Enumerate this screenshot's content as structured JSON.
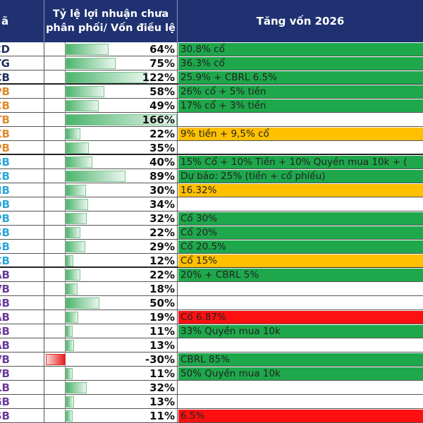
{
  "header": {
    "ticker": "ã",
    "ratio": "Tỷ lệ lợi nhuận chưa phân phối/ Vốn điều lệ",
    "capital": "Tăng vốn 2026"
  },
  "colors": {
    "green": "#1ea84b",
    "yellow": "#ffc000",
    "red": "#ff1010",
    "navy": "#1f2f5c",
    "orange": "#e08a2c",
    "cyan": "#2aa7d8",
    "purple": "#6a3a9a"
  },
  "rows": [
    {
      "ticker": "CD",
      "tc": "navy",
      "value": 64,
      "label": "64%",
      "capital": "30.8% cổ",
      "fill": "green"
    },
    {
      "ticker": "TG",
      "tc": "navy",
      "value": 75,
      "label": "75%",
      "capital": "36.3% cổ",
      "fill": "green"
    },
    {
      "ticker": "CB",
      "tc": "navy",
      "value": 122,
      "label": "122%",
      "capital": "25.9% + CBRL 6.5%",
      "fill": "green"
    },
    {
      "ticker": "PB",
      "tc": "orange",
      "value": 58,
      "label": "58%",
      "capital": "26% cổ + 5% tiền",
      "fill": "green"
    },
    {
      "ticker": "CB",
      "tc": "orange",
      "value": 49,
      "label": "49%",
      "capital": "17% cổ + 3% tiền",
      "fill": "green"
    },
    {
      "ticker": "TB",
      "tc": "orange",
      "value": 166,
      "label": "166%",
      "capital": "",
      "fill": ""
    },
    {
      "ticker": "KB",
      "tc": "orange",
      "value": 22,
      "label": "22%",
      "capital": "9% tiền  + 9,5% cổ",
      "fill": "yellow"
    },
    {
      "ticker": "PB",
      "tc": "orange",
      "value": 35,
      "label": "35%",
      "capital": "",
      "fill": ""
    },
    {
      "ticker": "BB",
      "tc": "cyan",
      "value": 40,
      "label": "40%",
      "capital": "15% Cổ + 10% Tiền + 10% Quyền mua 10k + (",
      "fill": "green"
    },
    {
      "ticker": "CB",
      "tc": "cyan",
      "value": 89,
      "label": "89%",
      "capital": "Dự báo: 25% (tiền + cổ phiếu)",
      "fill": "green"
    },
    {
      "ticker": "HB",
      "tc": "cyan",
      "value": 30,
      "label": "30%",
      "capital": "16.32%",
      "fill": "yellow"
    },
    {
      "ticker": "OB",
      "tc": "cyan",
      "value": 34,
      "label": "34%",
      "capital": "",
      "fill": ""
    },
    {
      "ticker": "PB",
      "tc": "cyan",
      "value": 32,
      "label": "32%",
      "capital": "Cổ 30%",
      "fill": "green"
    },
    {
      "ticker": "SB",
      "tc": "cyan",
      "value": 22,
      "label": "22%",
      "capital": "Cổ 20%",
      "fill": "green"
    },
    {
      "ticker": "SB",
      "tc": "cyan",
      "value": 29,
      "label": "29%",
      "capital": "Cổ 20.5%",
      "fill": "green"
    },
    {
      "ticker": "CB",
      "tc": "cyan",
      "value": 12,
      "label": "12%",
      "capital": "Cổ 15%",
      "fill": "yellow"
    },
    {
      "ticker": "AB",
      "tc": "purple",
      "value": 22,
      "label": "22%",
      "capital": "20% + CBRL 5%",
      "fill": "green"
    },
    {
      "ticker": "VB",
      "tc": "purple",
      "value": 18,
      "label": "18%",
      "capital": "",
      "fill": ""
    },
    {
      "ticker": "BB",
      "tc": "purple",
      "value": 50,
      "label": "50%",
      "capital": "",
      "fill": ""
    },
    {
      "ticker": "AB",
      "tc": "purple",
      "value": 19,
      "label": "19%",
      "capital": "Cổ 6.87%",
      "fill": "red"
    },
    {
      "ticker": "BB",
      "tc": "purple",
      "value": 11,
      "label": "11%",
      "capital": "33% Quyền mua 10k",
      "fill": "green"
    },
    {
      "ticker": "AB",
      "tc": "purple",
      "value": 13,
      "label": "13%",
      "capital": "",
      "fill": ""
    },
    {
      "ticker": "VB",
      "tc": "purple",
      "value": -30,
      "label": "-30%",
      "capital": "CBRL 85%",
      "fill": "green"
    },
    {
      "ticker": "VB",
      "tc": "purple",
      "value": 11,
      "label": "11%",
      "capital": "50% Quyền mua 10k",
      "fill": "green"
    },
    {
      "ticker": "LB",
      "tc": "purple",
      "value": 32,
      "label": "32%",
      "capital": "",
      "fill": ""
    },
    {
      "ticker": "GB",
      "tc": "purple",
      "value": 13,
      "label": "13%",
      "capital": "",
      "fill": ""
    },
    {
      "ticker": "SB",
      "tc": "purple",
      "value": 11,
      "label": "11%",
      "capital": "6.5%",
      "fill": "red"
    }
  ]
}
